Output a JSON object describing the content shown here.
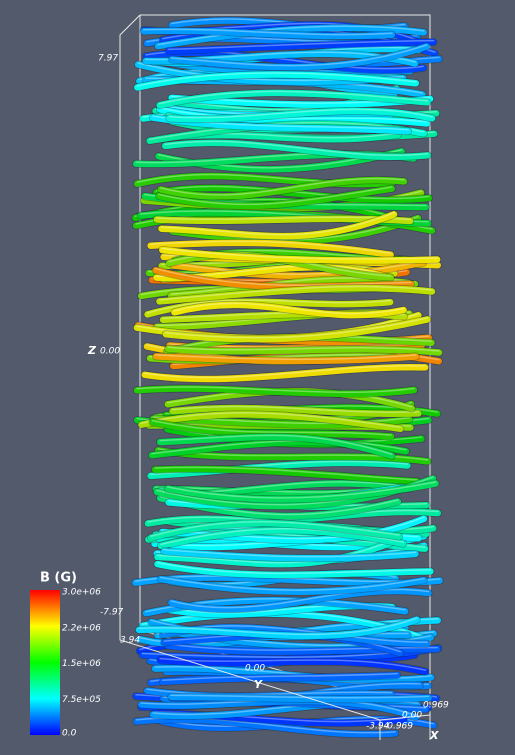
{
  "axes": {
    "z": {
      "label": "Z",
      "max": "7.97",
      "mid": "0.00",
      "min": "-7.97"
    },
    "y": {
      "label": "Y",
      "max": "3.94",
      "mid": "0.00",
      "min": "-3.94"
    },
    "x": {
      "label": "X",
      "min": "-0.969",
      "mid": "0.00",
      "max": "0.969"
    }
  },
  "colorbar": {
    "title": "B (G)",
    "labels": [
      "3.0e+06",
      "2.2e+06",
      "1.5e+06",
      "7.5e+05",
      "0.0"
    ]
  }
}
